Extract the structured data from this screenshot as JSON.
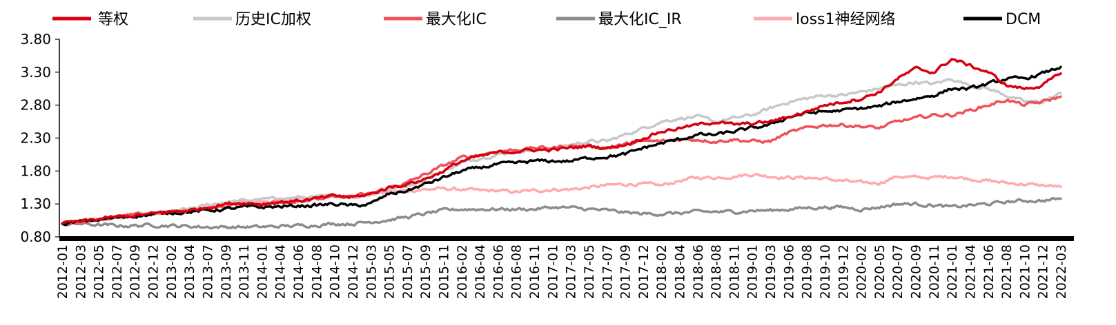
{
  "chart_data": {
    "type": "line",
    "title": "",
    "xlabel": "",
    "ylabel": "",
    "ylim": [
      0.8,
      3.8
    ],
    "yticks": [
      "0.80",
      "1.30",
      "1.80",
      "2.30",
      "2.80",
      "3.30",
      "3.80"
    ],
    "grid": false,
    "legend_position": "top",
    "categories": [
      "2012-01",
      "2012-03",
      "2012-05",
      "2012-07",
      "2012-09",
      "2012-12",
      "2013-02",
      "2013-04",
      "2013-07",
      "2013-09",
      "2013-11",
      "2014-01",
      "2014-04",
      "2014-06",
      "2014-08",
      "2014-10",
      "2014-12",
      "2015-03",
      "2015-05",
      "2015-07",
      "2015-09",
      "2015-11",
      "2016-02",
      "2016-04",
      "2016-06",
      "2016-08",
      "2016-11",
      "2017-01",
      "2017-03",
      "2017-05",
      "2017-07",
      "2017-09",
      "2017-12",
      "2018-02",
      "2018-04",
      "2018-06",
      "2018-08",
      "2018-11",
      "2019-01",
      "2019-03",
      "2019-06",
      "2019-08",
      "2019-10",
      "2019-12",
      "2020-02",
      "2020-05",
      "2020-07",
      "2020-09",
      "2020-11",
      "2021-01",
      "2021-04",
      "2021-06",
      "2021-08",
      "2021-10",
      "2021-12",
      "2022-03"
    ],
    "series": [
      {
        "name": "等权",
        "color": "#d7000f",
        "width": 3.5,
        "values": [
          1.0,
          1.03,
          1.07,
          1.1,
          1.12,
          1.15,
          1.18,
          1.2,
          1.25,
          1.3,
          1.32,
          1.3,
          1.33,
          1.35,
          1.38,
          1.42,
          1.4,
          1.45,
          1.55,
          1.6,
          1.68,
          1.8,
          1.95,
          2.02,
          2.08,
          2.1,
          2.12,
          2.12,
          2.15,
          2.18,
          2.15,
          2.2,
          2.3,
          2.4,
          2.45,
          2.5,
          2.55,
          2.5,
          2.52,
          2.55,
          2.62,
          2.7,
          2.8,
          2.85,
          2.9,
          3.0,
          3.2,
          3.35,
          3.3,
          3.5,
          3.4,
          3.3,
          3.1,
          3.05,
          3.1,
          3.28
        ]
      },
      {
        "name": "历史IC加权",
        "color": "#c8c8c8",
        "width": 3.5,
        "values": [
          1.0,
          1.03,
          1.06,
          1.09,
          1.12,
          1.14,
          1.18,
          1.22,
          1.28,
          1.33,
          1.35,
          1.37,
          1.38,
          1.4,
          1.4,
          1.42,
          1.42,
          1.45,
          1.52,
          1.58,
          1.68,
          1.8,
          1.92,
          2.0,
          2.05,
          2.1,
          2.12,
          2.15,
          2.2,
          2.25,
          2.25,
          2.35,
          2.45,
          2.55,
          2.6,
          2.62,
          2.55,
          2.6,
          2.65,
          2.75,
          2.85,
          2.9,
          2.95,
          2.95,
          3.0,
          3.05,
          3.1,
          3.15,
          3.12,
          3.2,
          3.1,
          3.05,
          2.95,
          2.85,
          2.85,
          2.98
        ]
      },
      {
        "name": "最大化IC",
        "color": "#f0505a",
        "width": 3.5,
        "values": [
          1.0,
          1.03,
          1.07,
          1.1,
          1.13,
          1.16,
          1.18,
          1.2,
          1.23,
          1.27,
          1.3,
          1.3,
          1.33,
          1.35,
          1.37,
          1.4,
          1.42,
          1.45,
          1.55,
          1.62,
          1.75,
          1.88,
          2.0,
          2.05,
          2.1,
          2.12,
          2.15,
          2.15,
          2.18,
          2.18,
          2.15,
          2.2,
          2.25,
          2.25,
          2.28,
          2.28,
          2.25,
          2.28,
          2.25,
          2.25,
          2.38,
          2.45,
          2.5,
          2.5,
          2.48,
          2.45,
          2.55,
          2.6,
          2.65,
          2.65,
          2.72,
          2.8,
          2.88,
          2.8,
          2.85,
          2.93
        ]
      },
      {
        "name": "最大化IC_IR",
        "color": "#8c8c8c",
        "width": 3.5,
        "values": [
          1.0,
          1.0,
          0.98,
          0.97,
          0.97,
          0.98,
          0.97,
          0.96,
          0.95,
          0.95,
          0.95,
          0.95,
          0.96,
          0.97,
          0.98,
          1.0,
          1.0,
          1.03,
          1.06,
          1.1,
          1.15,
          1.2,
          1.22,
          1.22,
          1.22,
          1.22,
          1.22,
          1.25,
          1.24,
          1.22,
          1.2,
          1.17,
          1.15,
          1.15,
          1.16,
          1.18,
          1.18,
          1.18,
          1.2,
          1.2,
          1.22,
          1.24,
          1.25,
          1.25,
          1.22,
          1.25,
          1.3,
          1.3,
          1.28,
          1.25,
          1.28,
          1.3,
          1.33,
          1.35,
          1.35,
          1.38
        ]
      },
      {
        "name": "loss1神经网络",
        "color": "#ffaab0",
        "width": 3.5,
        "values": [
          1.0,
          1.03,
          1.06,
          1.09,
          1.12,
          1.14,
          1.18,
          1.2,
          1.25,
          1.3,
          1.33,
          1.33,
          1.35,
          1.37,
          1.4,
          1.42,
          1.42,
          1.45,
          1.48,
          1.5,
          1.52,
          1.53,
          1.52,
          1.5,
          1.5,
          1.48,
          1.5,
          1.52,
          1.52,
          1.55,
          1.58,
          1.6,
          1.6,
          1.58,
          1.65,
          1.7,
          1.7,
          1.72,
          1.75,
          1.72,
          1.7,
          1.7,
          1.68,
          1.65,
          1.62,
          1.62,
          1.72,
          1.7,
          1.7,
          1.72,
          1.68,
          1.65,
          1.62,
          1.6,
          1.58,
          1.56
        ]
      },
      {
        "name": "DCM",
        "color": "#000000",
        "width": 3.5,
        "values": [
          1.0,
          1.03,
          1.06,
          1.09,
          1.12,
          1.14,
          1.17,
          1.18,
          1.2,
          1.22,
          1.25,
          1.25,
          1.26,
          1.27,
          1.28,
          1.3,
          1.27,
          1.3,
          1.45,
          1.5,
          1.6,
          1.7,
          1.8,
          1.85,
          1.9,
          1.92,
          1.95,
          1.95,
          1.95,
          2.0,
          2.02,
          2.05,
          2.15,
          2.22,
          2.28,
          2.35,
          2.35,
          2.4,
          2.45,
          2.5,
          2.62,
          2.68,
          2.7,
          2.72,
          2.75,
          2.78,
          2.85,
          2.9,
          2.95,
          3.05,
          3.05,
          3.12,
          3.2,
          3.2,
          3.28,
          3.38
        ]
      }
    ]
  }
}
